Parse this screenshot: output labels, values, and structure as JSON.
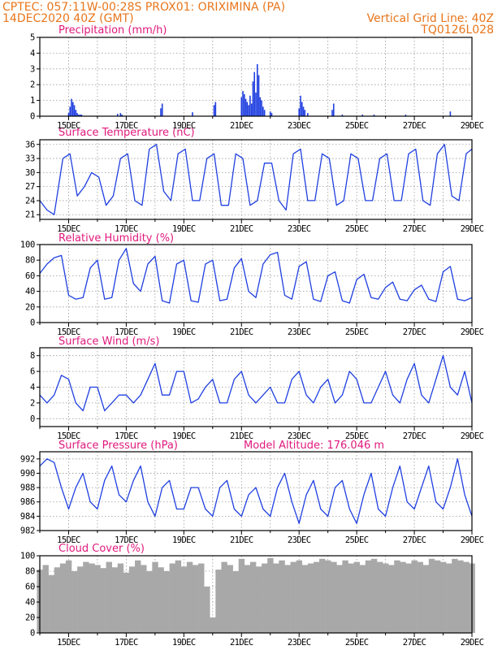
{
  "header": {
    "line1": "CPTEC:   057:11W-00:28S   PROX01: ORIXIMINA (PA)",
    "line2_left": "14DEC2020 40Z (GMT)",
    "line2_right": "Vertical Grid Line: 40Z",
    "line3_right": "TQ0126L028"
  },
  "x_axis": {
    "start_day": 14,
    "end_day": 29,
    "tick_labels": [
      "15DEC",
      "17DEC",
      "19DEC",
      "21DEC",
      "23DEC",
      "25DEC",
      "27DEC",
      "29DEC"
    ],
    "tick_days": [
      15,
      17,
      19,
      21,
      23,
      25,
      27,
      29
    ]
  },
  "colors": {
    "line": "#1f3fe0",
    "cloud": "#a8a8a8",
    "title": "#e0197d",
    "header": "#e8761c"
  },
  "chart_data": [
    {
      "id": "precip",
      "type": "bar",
      "title": "Precipitation (mm/h)",
      "ylim": [
        0,
        5
      ],
      "yticks": [
        0,
        1,
        2,
        3,
        4,
        5
      ],
      "x": [
        15.0,
        15.05,
        15.1,
        15.15,
        15.2,
        15.25,
        15.3,
        15.35,
        15.4,
        15.45,
        16.7,
        16.8,
        16.85,
        18.2,
        18.25,
        19.3,
        20.05,
        20.1,
        21.0,
        21.05,
        21.1,
        21.15,
        21.2,
        21.25,
        21.3,
        21.35,
        21.4,
        21.45,
        21.5,
        21.55,
        21.6,
        21.65,
        21.7,
        21.75,
        21.8,
        22.0,
        22.05,
        23.0,
        23.05,
        23.1,
        23.15,
        23.2,
        23.3,
        24.15,
        24.2,
        24.5,
        25.2,
        25.6,
        26.7,
        28.25
      ],
      "values": [
        0.2,
        0.6,
        1.1,
        0.9,
        0.7,
        0.4,
        0.2,
        0.1,
        0.1,
        0.1,
        0.15,
        0.2,
        0.1,
        0.5,
        0.8,
        0.25,
        0.7,
        0.9,
        1.2,
        1.6,
        1.4,
        1.1,
        0.9,
        0.7,
        1.3,
        0.8,
        2.2,
        2.8,
        1.5,
        3.3,
        2.6,
        1.2,
        1.0,
        0.6,
        0.4,
        0.3,
        0.2,
        0.5,
        1.3,
        0.9,
        0.6,
        0.4,
        0.2,
        0.4,
        0.8,
        0.1,
        0.1,
        0.1,
        0.1,
        0.3
      ]
    },
    {
      "id": "temp",
      "type": "line",
      "title": "Surface Temperature (nC)",
      "ylim": [
        20,
        37
      ],
      "yticks": [
        21,
        24,
        27,
        30,
        33,
        36
      ],
      "x": [
        14.0,
        14.25,
        14.5,
        14.8,
        15.05,
        15.3,
        15.55,
        15.8,
        16.05,
        16.3,
        16.55,
        16.8,
        17.05,
        17.3,
        17.55,
        17.8,
        18.05,
        18.3,
        18.55,
        18.8,
        19.05,
        19.3,
        19.55,
        19.8,
        20.05,
        20.3,
        20.55,
        20.8,
        21.05,
        21.3,
        21.55,
        21.8,
        22.05,
        22.3,
        22.55,
        22.8,
        23.05,
        23.3,
        23.55,
        23.8,
        24.05,
        24.3,
        24.55,
        24.8,
        25.05,
        25.3,
        25.55,
        25.8,
        26.05,
        26.3,
        26.55,
        26.8,
        27.05,
        27.3,
        27.55,
        27.8,
        28.05,
        28.3,
        28.55,
        28.8,
        29.0
      ],
      "values": [
        24,
        22,
        21,
        33,
        34,
        25,
        27,
        30,
        29,
        23,
        25,
        33,
        34,
        24,
        23,
        35,
        36,
        26,
        24,
        34,
        35,
        24,
        24,
        33,
        34,
        23,
        23,
        34,
        33,
        23,
        24,
        32,
        32,
        24,
        22,
        34,
        35,
        24,
        24,
        34,
        33,
        23,
        24,
        34,
        33,
        24,
        24,
        33,
        34,
        24,
        24,
        34,
        35,
        24,
        23,
        34,
        36,
        25,
        24,
        34,
        35
      ]
    },
    {
      "id": "rh",
      "type": "line",
      "title": "Relative Humidity (%)",
      "ylim": [
        0,
        100
      ],
      "yticks": [
        0,
        20,
        40,
        60,
        80,
        100
      ],
      "x": [
        14.0,
        14.25,
        14.5,
        14.75,
        15.0,
        15.25,
        15.5,
        15.75,
        16.0,
        16.25,
        16.5,
        16.75,
        17.0,
        17.25,
        17.5,
        17.75,
        18.0,
        18.25,
        18.5,
        18.75,
        19.0,
        19.25,
        19.5,
        19.75,
        20.0,
        20.25,
        20.5,
        20.75,
        21.0,
        21.25,
        21.5,
        21.75,
        22.0,
        22.25,
        22.5,
        22.75,
        23.0,
        23.25,
        23.5,
        23.75,
        24.0,
        24.25,
        24.5,
        24.75,
        25.0,
        25.25,
        25.5,
        25.75,
        26.0,
        26.25,
        26.5,
        26.75,
        27.0,
        27.25,
        27.5,
        27.75,
        28.0,
        28.25,
        28.5,
        28.75,
        29.0
      ],
      "values": [
        63,
        75,
        83,
        86,
        35,
        30,
        32,
        70,
        80,
        30,
        32,
        80,
        95,
        50,
        40,
        75,
        85,
        28,
        25,
        75,
        80,
        28,
        26,
        75,
        80,
        28,
        30,
        70,
        82,
        40,
        32,
        75,
        87,
        90,
        35,
        30,
        72,
        78,
        30,
        27,
        60,
        65,
        28,
        25,
        55,
        62,
        32,
        30,
        45,
        52,
        30,
        28,
        42,
        48,
        30,
        27,
        65,
        72,
        30,
        28,
        32
      ]
    },
    {
      "id": "wind",
      "type": "line",
      "title": "Surface Wind (m/s)",
      "ylim": [
        -1,
        9
      ],
      "yticks": [
        0,
        2,
        4,
        6,
        8
      ],
      "x": [
        14.0,
        14.25,
        14.5,
        14.75,
        15.0,
        15.25,
        15.5,
        15.75,
        16.0,
        16.25,
        16.5,
        16.75,
        17.0,
        17.25,
        17.5,
        17.75,
        18.0,
        18.25,
        18.5,
        18.75,
        19.0,
        19.25,
        19.5,
        19.75,
        20.0,
        20.25,
        20.5,
        20.75,
        21.0,
        21.25,
        21.5,
        21.75,
        22.0,
        22.25,
        22.5,
        22.75,
        23.0,
        23.25,
        23.5,
        23.75,
        24.0,
        24.25,
        24.5,
        24.75,
        25.0,
        25.25,
        25.5,
        25.75,
        26.0,
        26.25,
        26.5,
        26.75,
        27.0,
        27.25,
        27.5,
        27.75,
        28.0,
        28.25,
        28.5,
        28.75,
        29.0
      ],
      "values": [
        3,
        2,
        3,
        5.5,
        5,
        2,
        1,
        4,
        4,
        1,
        2,
        3,
        3,
        2,
        3,
        5,
        7,
        3,
        3,
        6,
        6,
        2,
        2.5,
        4,
        5,
        2,
        2,
        5,
        6,
        3,
        2,
        3,
        4,
        2,
        2,
        5,
        6,
        3,
        2,
        4,
        5,
        2,
        3,
        6,
        5,
        2,
        2,
        4,
        6,
        3,
        2,
        5,
        7,
        3,
        2,
        5,
        8,
        4,
        3,
        6,
        2
      ]
    },
    {
      "id": "pressure",
      "type": "line",
      "title": "Surface Pressure (hPa)",
      "annotation": "Model Altitude: 176.046 m",
      "ylim": [
        982,
        993
      ],
      "yticks": [
        982,
        984,
        986,
        988,
        990,
        992
      ],
      "x": [
        14.0,
        14.25,
        14.5,
        14.75,
        15.0,
        15.25,
        15.5,
        15.75,
        16.0,
        16.25,
        16.5,
        16.75,
        17.0,
        17.25,
        17.5,
        17.75,
        18.0,
        18.25,
        18.5,
        18.75,
        19.0,
        19.25,
        19.5,
        19.75,
        20.0,
        20.25,
        20.5,
        20.75,
        21.0,
        21.25,
        21.5,
        21.75,
        22.0,
        22.25,
        22.5,
        22.75,
        23.0,
        23.25,
        23.5,
        23.75,
        24.0,
        24.25,
        24.5,
        24.75,
        25.0,
        25.25,
        25.5,
        25.75,
        26.0,
        26.25,
        26.5,
        26.75,
        27.0,
        27.25,
        27.5,
        27.75,
        28.0,
        28.25,
        28.5,
        28.75,
        29.0
      ],
      "values": [
        991,
        992,
        991.5,
        988,
        985,
        988,
        990,
        986,
        985,
        989,
        991,
        987,
        986,
        989,
        991,
        986,
        984,
        988,
        989,
        985,
        985,
        988,
        988,
        985,
        984,
        988,
        989,
        985,
        984,
        987,
        988,
        985,
        984,
        988,
        990,
        986,
        983,
        987,
        989,
        985,
        984,
        988,
        989,
        985,
        983,
        987,
        990,
        985,
        984,
        988,
        991,
        986,
        985,
        988,
        991,
        986,
        985,
        988,
        992,
        987,
        984
      ]
    },
    {
      "id": "cloud",
      "type": "area",
      "title": "Cloud Cover (%)",
      "ylim": [
        0,
        100
      ],
      "yticks": [
        0,
        20,
        40,
        60,
        80,
        100
      ],
      "x": [
        14.0,
        14.2,
        14.4,
        14.6,
        14.8,
        15.0,
        15.2,
        15.4,
        15.6,
        15.8,
        16.0,
        16.2,
        16.4,
        16.6,
        16.8,
        17.0,
        17.2,
        17.4,
        17.6,
        17.8,
        18.0,
        18.2,
        18.4,
        18.6,
        18.8,
        19.0,
        19.2,
        19.4,
        19.6,
        19.8,
        20.0,
        20.2,
        20.4,
        20.6,
        20.8,
        21.0,
        21.2,
        21.4,
        21.6,
        21.8,
        22.0,
        22.2,
        22.4,
        22.6,
        22.8,
        23.0,
        23.2,
        23.4,
        23.6,
        23.8,
        24.0,
        24.2,
        24.4,
        24.6,
        24.8,
        25.0,
        25.2,
        25.4,
        25.6,
        25.8,
        26.0,
        26.2,
        26.4,
        26.6,
        26.8,
        27.0,
        27.2,
        27.4,
        27.6,
        27.8,
        28.0,
        28.2,
        28.4,
        28.6,
        28.8,
        29.0
      ],
      "values": [
        82,
        88,
        75,
        85,
        90,
        94,
        80,
        86,
        92,
        90,
        88,
        84,
        92,
        85,
        90,
        78,
        86,
        94,
        88,
        80,
        92,
        85,
        80,
        90,
        94,
        86,
        92,
        88,
        90,
        60,
        20,
        82,
        92,
        88,
        80,
        96,
        88,
        92,
        86,
        90,
        97,
        90,
        94,
        88,
        92,
        94,
        88,
        90,
        92,
        96,
        94,
        92,
        88,
        94,
        90,
        92,
        88,
        94,
        96,
        92,
        90,
        88,
        94,
        92,
        90,
        94,
        92,
        88,
        96,
        94,
        92,
        90,
        96,
        94,
        92,
        90
      ]
    }
  ]
}
